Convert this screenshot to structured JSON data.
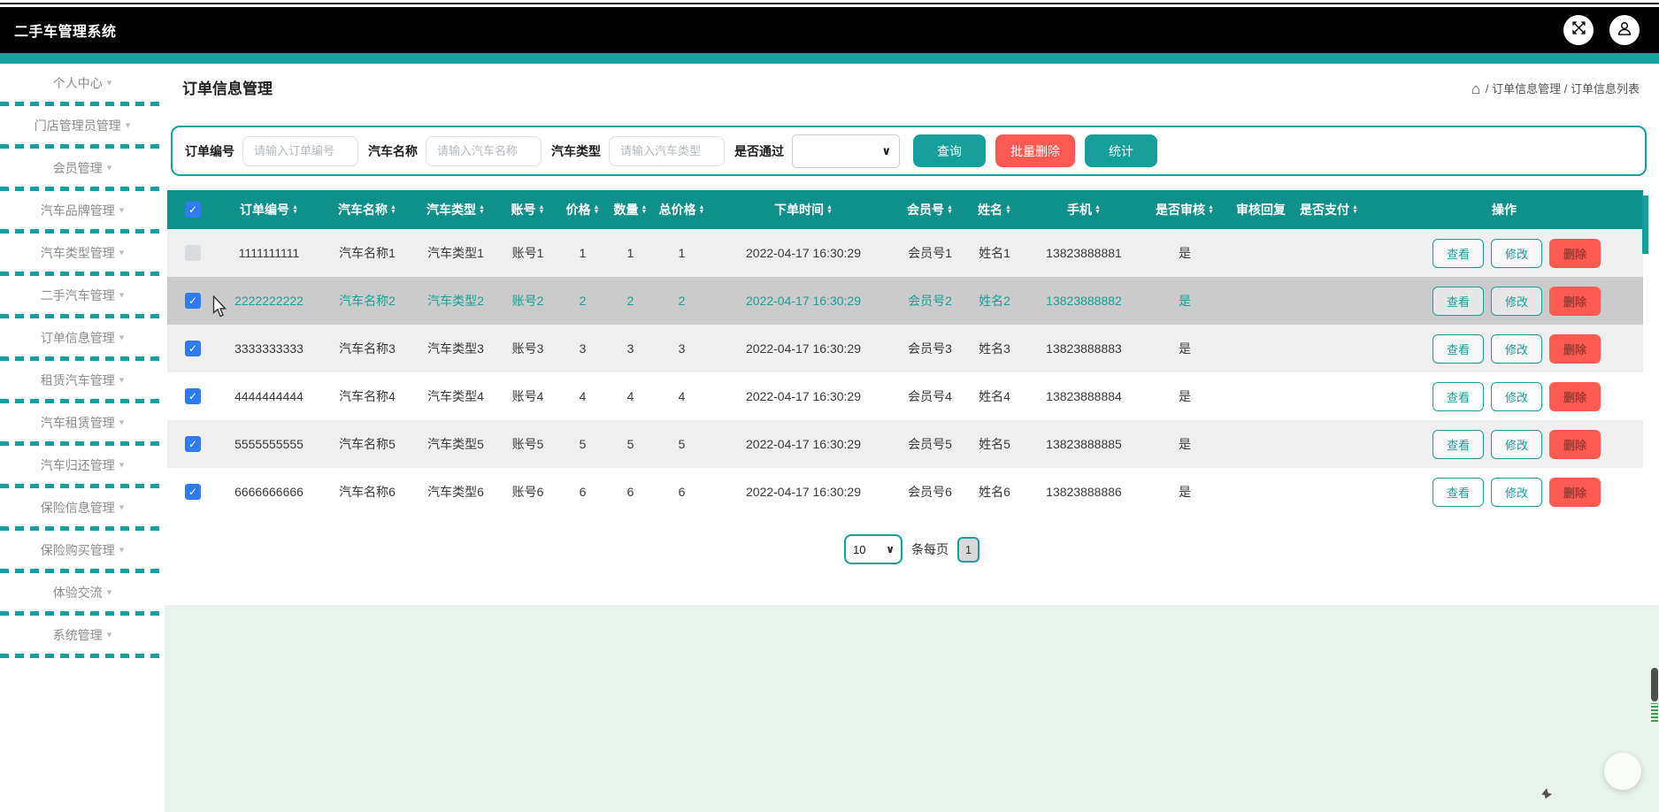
{
  "app": {
    "title": "二手车管理系统"
  },
  "topbar": {
    "icons": [
      {
        "name": "fullscreen-icon"
      },
      {
        "name": "user-icon"
      }
    ]
  },
  "sidebar": {
    "items": [
      {
        "label": "个人中心"
      },
      {
        "label": "门店管理员管理"
      },
      {
        "label": "会员管理"
      },
      {
        "label": "汽车品牌管理"
      },
      {
        "label": "汽车类型管理"
      },
      {
        "label": "二手汽车管理"
      },
      {
        "label": "订单信息管理"
      },
      {
        "label": "租赁汽车管理"
      },
      {
        "label": "汽车租赁管理"
      },
      {
        "label": "汽车归还管理"
      },
      {
        "label": "保险信息管理"
      },
      {
        "label": "保险购买管理"
      },
      {
        "label": "体验交流"
      },
      {
        "label": "系统管理"
      }
    ],
    "caret_icon": "chevron-down-icon"
  },
  "page": {
    "title": "订单信息管理",
    "breadcrumb": {
      "home_icon": "home-icon",
      "separator": "/",
      "items": [
        "订单信息管理",
        "订单信息列表"
      ]
    }
  },
  "search": {
    "fields": [
      {
        "label": "订单编号",
        "placeholder": "请输入订单编号"
      },
      {
        "label": "汽车名称",
        "placeholder": "请输入汽车名称"
      },
      {
        "label": "汽车类型",
        "placeholder": "请输入汽车类型"
      }
    ],
    "select": {
      "label": "是否通过",
      "value": ""
    },
    "buttons": [
      {
        "label": "查询",
        "style": "teal",
        "name": "search-button"
      },
      {
        "label": "批量删除",
        "style": "red",
        "name": "batch-delete-button"
      },
      {
        "label": "统计",
        "style": "teal",
        "name": "stats-button"
      }
    ]
  },
  "table": {
    "action_col_label": "操作",
    "columns": [
      {
        "key": "order_no",
        "label": "订单编号",
        "sortable": true
      },
      {
        "key": "car_name",
        "label": "汽车名称",
        "sortable": true
      },
      {
        "key": "car_type",
        "label": "汽车类型",
        "sortable": true
      },
      {
        "key": "account",
        "label": "账号",
        "sortable": true
      },
      {
        "key": "price",
        "label": "价格",
        "sortable": true
      },
      {
        "key": "quantity",
        "label": "数量",
        "sortable": true
      },
      {
        "key": "total_price",
        "label": "总价格",
        "sortable": true
      },
      {
        "key": "order_time",
        "label": "下单时间",
        "sortable": true
      },
      {
        "key": "member_no",
        "label": "会员号",
        "sortable": true
      },
      {
        "key": "name",
        "label": "姓名",
        "sortable": true
      },
      {
        "key": "phone",
        "label": "手机",
        "sortable": true
      },
      {
        "key": "audited",
        "label": "是否审核",
        "sortable": true
      },
      {
        "key": "audit_reply",
        "label": "审核回复",
        "sortable": false
      },
      {
        "key": "paid",
        "label": "是否支付",
        "sortable": true
      }
    ],
    "action_buttons": [
      {
        "label": "查看",
        "style": "outline",
        "name": "view-button"
      },
      {
        "label": "修改",
        "style": "outline",
        "name": "edit-button"
      },
      {
        "label": "删除",
        "style": "danger",
        "name": "delete-button"
      }
    ],
    "rows": [
      {
        "checked": false,
        "highlighted": false,
        "order_no": "1111111111",
        "car_name": "汽车名称1",
        "car_type": "汽车类型1",
        "account": "账号1",
        "price": "1",
        "quantity": "1",
        "total_price": "1",
        "order_time": "2022-04-17 16:30:29",
        "member_no": "会员号1",
        "name": "姓名1",
        "phone": "13823888881",
        "audited": "是",
        "audit_reply": "",
        "paid": ""
      },
      {
        "checked": true,
        "highlighted": true,
        "order_no": "2222222222",
        "car_name": "汽车名称2",
        "car_type": "汽车类型2",
        "account": "账号2",
        "price": "2",
        "quantity": "2",
        "total_price": "2",
        "order_time": "2022-04-17 16:30:29",
        "member_no": "会员号2",
        "name": "姓名2",
        "phone": "13823888882",
        "audited": "是",
        "audit_reply": "",
        "paid": ""
      },
      {
        "checked": true,
        "highlighted": false,
        "order_no": "3333333333",
        "car_name": "汽车名称3",
        "car_type": "汽车类型3",
        "account": "账号3",
        "price": "3",
        "quantity": "3",
        "total_price": "3",
        "order_time": "2022-04-17 16:30:29",
        "member_no": "会员号3",
        "name": "姓名3",
        "phone": "13823888883",
        "audited": "是",
        "audit_reply": "",
        "paid": ""
      },
      {
        "checked": true,
        "highlighted": false,
        "order_no": "4444444444",
        "car_name": "汽车名称4",
        "car_type": "汽车类型4",
        "account": "账号4",
        "price": "4",
        "quantity": "4",
        "total_price": "4",
        "order_time": "2022-04-17 16:30:29",
        "member_no": "会员号4",
        "name": "姓名4",
        "phone": "13823888884",
        "audited": "是",
        "audit_reply": "",
        "paid": ""
      },
      {
        "checked": true,
        "highlighted": false,
        "order_no": "5555555555",
        "car_name": "汽车名称5",
        "car_type": "汽车类型5",
        "account": "账号5",
        "price": "5",
        "quantity": "5",
        "total_price": "5",
        "order_time": "2022-04-17 16:30:29",
        "member_no": "会员号5",
        "name": "姓名5",
        "phone": "13823888885",
        "audited": "是",
        "audit_reply": "",
        "paid": ""
      },
      {
        "checked": true,
        "highlighted": false,
        "order_no": "6666666666",
        "car_name": "汽车名称6",
        "car_type": "汽车类型6",
        "account": "账号6",
        "price": "6",
        "quantity": "6",
        "total_price": "6",
        "order_time": "2022-04-17 16:30:29",
        "member_no": "会员号6",
        "name": "姓名6",
        "phone": "13823888886",
        "audited": "是",
        "audit_reply": "",
        "paid": ""
      }
    ]
  },
  "pagination": {
    "page_size": "10",
    "per_page_label": "条每页",
    "current_page": "1"
  },
  "colors": {
    "accent": "#16a09b",
    "accent_dark": "#0f908c",
    "danger": "#ff5a52",
    "highlight_text": "#17a099",
    "checkbox_blue": "#2f7bf2"
  }
}
